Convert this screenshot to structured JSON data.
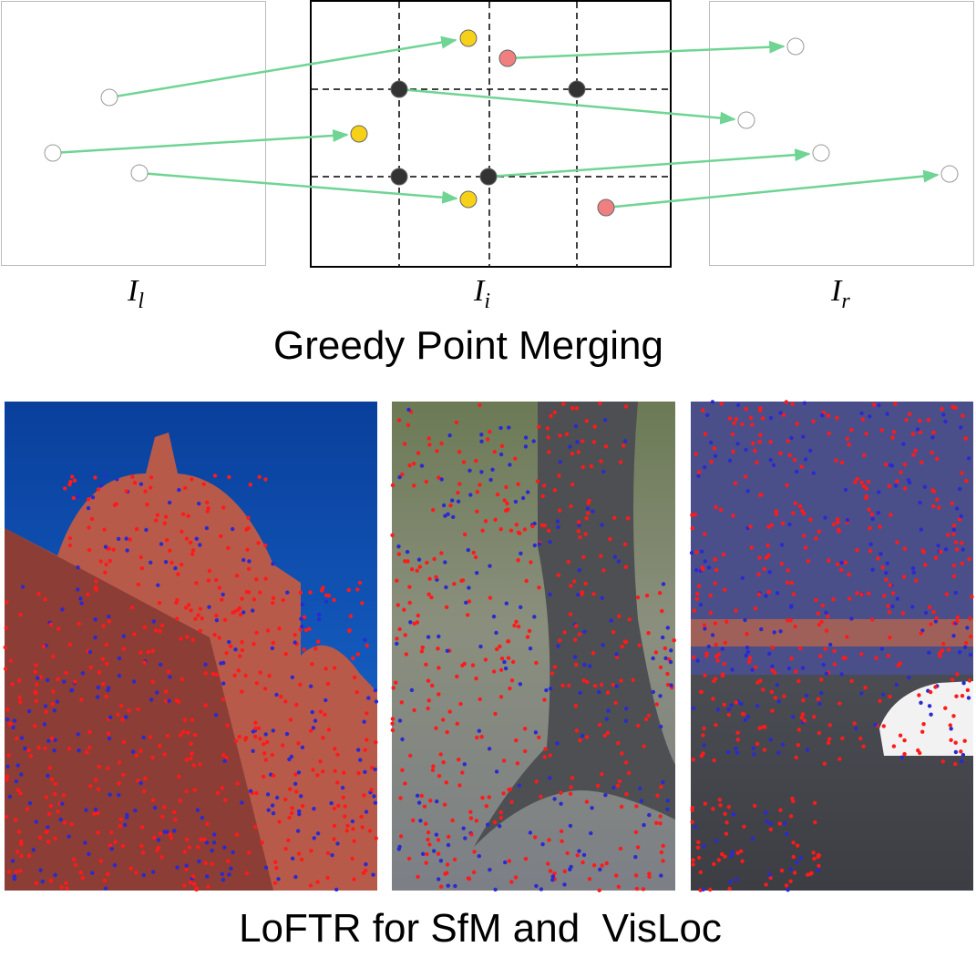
{
  "diagram": {
    "labels": [
      {
        "main": "I",
        "sub": "l"
      },
      {
        "main": "I",
        "sub": "i"
      },
      {
        "main": "I",
        "sub": "r"
      }
    ],
    "title": "Greedy Point Merging",
    "caption": "LoFTR for SfM and  VisLoc"
  }
}
